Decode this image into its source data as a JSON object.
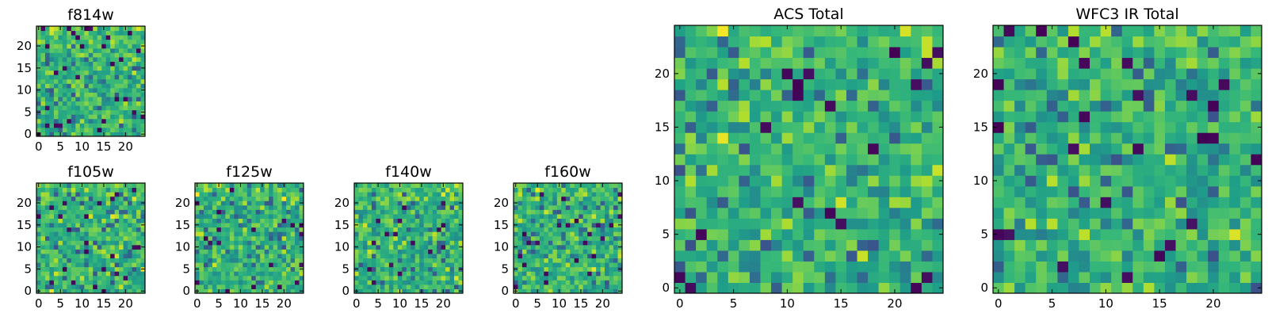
{
  "chart_data": [
    {
      "id": "f814w",
      "type": "heatmap",
      "title": "f814w",
      "grid_size": 25,
      "xlim": [
        -0.5,
        24.5
      ],
      "ylim": [
        -0.5,
        24.5
      ],
      "xticks": [
        0,
        5,
        10,
        15,
        20
      ],
      "yticks": [
        0,
        5,
        10,
        15,
        20
      ],
      "colormap": "viridis",
      "value_range": [
        0,
        1
      ],
      "seed": 814
    },
    {
      "id": "f105w",
      "type": "heatmap",
      "title": "f105w",
      "grid_size": 25,
      "xlim": [
        -0.5,
        24.5
      ],
      "ylim": [
        -0.5,
        24.5
      ],
      "xticks": [
        0,
        5,
        10,
        15,
        20
      ],
      "yticks": [
        0,
        5,
        10,
        15,
        20
      ],
      "colormap": "viridis",
      "value_range": [
        0,
        1
      ],
      "seed": 105
    },
    {
      "id": "f125w",
      "type": "heatmap",
      "title": "f125w",
      "grid_size": 25,
      "xlim": [
        -0.5,
        24.5
      ],
      "ylim": [
        -0.5,
        24.5
      ],
      "xticks": [
        0,
        5,
        10,
        15,
        20
      ],
      "yticks": [
        0,
        5,
        10,
        15,
        20
      ],
      "colormap": "viridis",
      "value_range": [
        0,
        1
      ],
      "seed": 125
    },
    {
      "id": "f140w",
      "type": "heatmap",
      "title": "f140w",
      "grid_size": 25,
      "xlim": [
        -0.5,
        24.5
      ],
      "ylim": [
        -0.5,
        24.5
      ],
      "xticks": [
        0,
        5,
        10,
        15,
        20
      ],
      "yticks": [
        0,
        5,
        10,
        15,
        20
      ],
      "colormap": "viridis",
      "value_range": [
        0,
        1
      ],
      "seed": 140
    },
    {
      "id": "f160w",
      "type": "heatmap",
      "title": "f160w",
      "grid_size": 25,
      "xlim": [
        -0.5,
        24.5
      ],
      "ylim": [
        -0.5,
        24.5
      ],
      "xticks": [
        0,
        5,
        10,
        15,
        20
      ],
      "yticks": [
        0,
        5,
        10,
        15,
        20
      ],
      "colormap": "viridis",
      "value_range": [
        0,
        1
      ],
      "seed": 160
    },
    {
      "id": "acs-total",
      "type": "heatmap",
      "title": "ACS Total",
      "grid_size": 25,
      "xlim": [
        -0.5,
        24.5
      ],
      "ylim": [
        -0.5,
        24.5
      ],
      "xticks": [
        0,
        5,
        10,
        15,
        20
      ],
      "yticks": [
        0,
        5,
        10,
        15,
        20
      ],
      "colormap": "viridis",
      "value_range": [
        0,
        1
      ],
      "seed": 7001
    },
    {
      "id": "wfc3-ir-total",
      "type": "heatmap",
      "title": "WFC3 IR Total",
      "grid_size": 25,
      "xlim": [
        -0.5,
        24.5
      ],
      "ylim": [
        -0.5,
        24.5
      ],
      "xticks": [
        0,
        5,
        10,
        15,
        20
      ],
      "yticks": [
        0,
        5,
        10,
        15,
        20
      ],
      "colormap": "viridis",
      "value_range": [
        0,
        1
      ],
      "seed": 7002
    }
  ]
}
